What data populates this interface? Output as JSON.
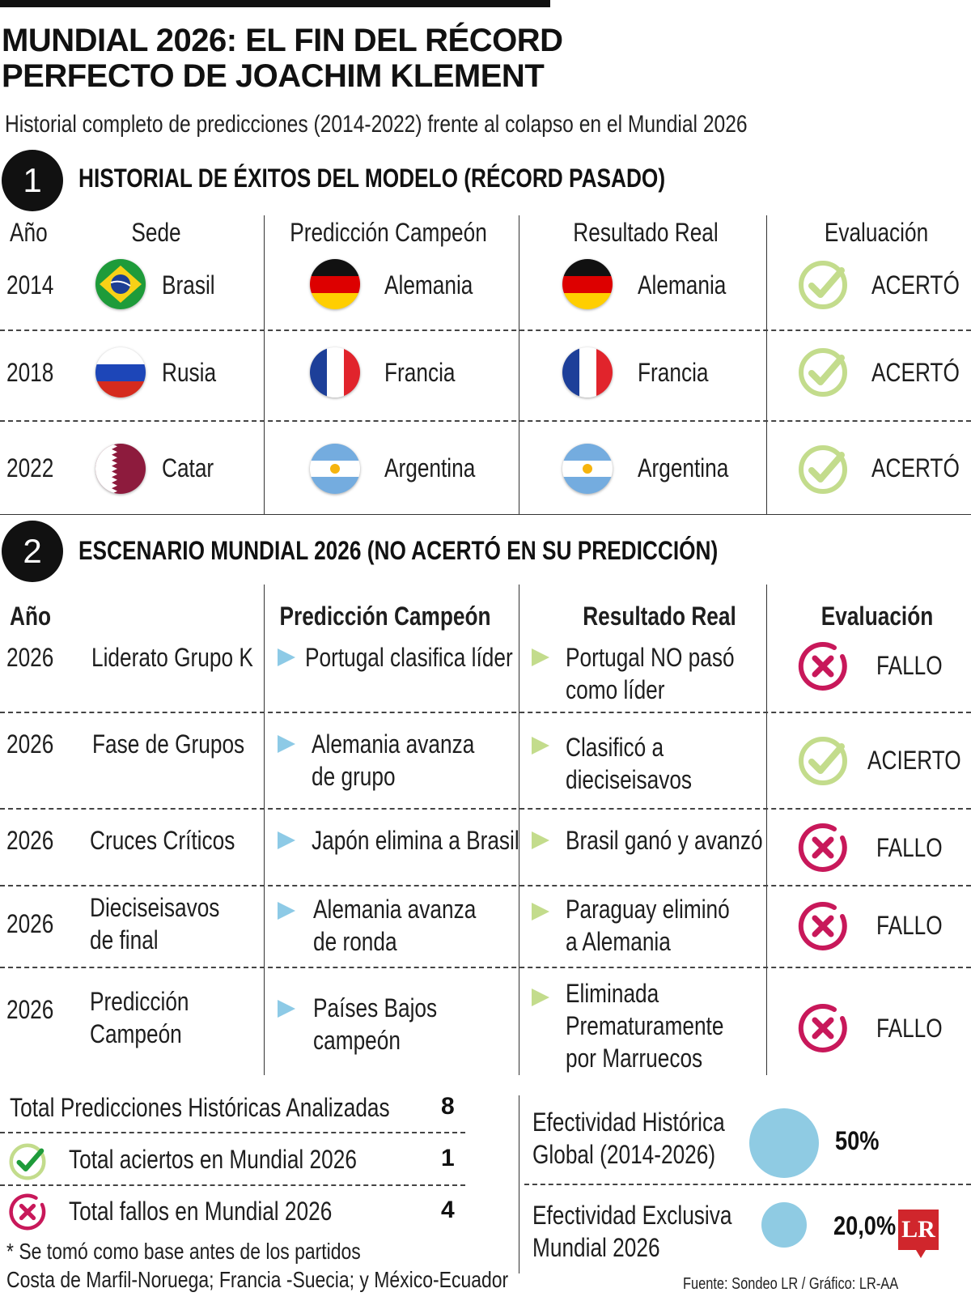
{
  "title_line1": "MUNDIAL 2026: EL FIN DEL RÉCORD",
  "title_line2": "PERFECTO DE JOACHIM KLEMENT",
  "subtitle": "Historial completo de predicciones (2014-2022) frente al colapso en el Mundial 2026",
  "section1": {
    "number": "1",
    "heading": "HISTORIAL DE ÉXITOS DEL MODELO (RÉCORD PASADO)",
    "columns": {
      "year": "Año",
      "host": "Sede",
      "prediction": "Predicción Campeón",
      "result": "Resultado Real",
      "evaluation": "Evaluación"
    },
    "rows": [
      {
        "year": "2014",
        "host": "Brasil",
        "host_flag": "brazil-flag",
        "prediction": "Alemania",
        "prediction_flag": "germany-flag",
        "result": "Alemania",
        "result_flag": "germany-flag",
        "evaluation": "ACERTÓ",
        "eval_icon": "check-icon"
      },
      {
        "year": "2018",
        "host": "Rusia",
        "host_flag": "russia-flag",
        "prediction": "Francia",
        "prediction_flag": "france-flag",
        "result": "Francia",
        "result_flag": "france-flag",
        "evaluation": "ACERTÓ",
        "eval_icon": "check-icon"
      },
      {
        "year": "2022",
        "host": "Catar",
        "host_flag": "qatar-flag",
        "prediction": "Argentina",
        "prediction_flag": "argentina-flag",
        "result": "Argentina",
        "result_flag": "argentina-flag",
        "evaluation": "ACERTÓ",
        "eval_icon": "check-icon"
      }
    ]
  },
  "section2": {
    "number": "2",
    "heading": "ESCENARIO MUNDIAL 2026 (NO ACERTÓ EN SU PREDICCIÓN)",
    "columns": {
      "year": "Año",
      "prediction": "Predicción Campeón",
      "result": "Resultado Real",
      "evaluation": "Evaluación"
    },
    "rows": [
      {
        "year": "2026",
        "phase_l1": "Liderato Grupo K",
        "phase_l2": "",
        "pred_l1": "Portugal clasifica líder",
        "pred_l2": "",
        "res_l1": "Portugal NO pasó",
        "res_l2": "como líder",
        "res_l3": "",
        "evaluation": "FALLO",
        "eval_icon": "cross-icon"
      },
      {
        "year": "2026",
        "phase_l1": "Fase de Grupos",
        "phase_l2": "",
        "pred_l1": "Alemania avanza",
        "pred_l2": "de grupo",
        "res_l1": "Clasificó a",
        "res_l2": "dieciseisavos",
        "res_l3": "",
        "evaluation": "ACIERTO",
        "eval_icon": "check-icon"
      },
      {
        "year": "2026",
        "phase_l1": "Cruces Críticos",
        "phase_l2": "",
        "pred_l1": "Japón elimina a Brasil",
        "pred_l2": "",
        "res_l1": "Brasil ganó y avanzó",
        "res_l2": "",
        "res_l3": "",
        "evaluation": "FALLO",
        "eval_icon": "cross-icon"
      },
      {
        "year": "2026",
        "phase_l1": "Dieciseisavos",
        "phase_l2": "de final",
        "pred_l1": "Alemania avanza",
        "pred_l2": "de ronda",
        "res_l1": "Paraguay eliminó",
        "res_l2": "a Alemania",
        "res_l3": "",
        "evaluation": "FALLO",
        "eval_icon": "cross-icon"
      },
      {
        "year": "2026",
        "phase_l1": "Predicción",
        "phase_l2": "Campeón",
        "pred_l1": "Países Bajos",
        "pred_l2": "campeón",
        "res_l1": "Eliminada",
        "res_l2": "Prematuramente",
        "res_l3": "por Marruecos",
        "evaluation": "FALLO",
        "eval_icon": "cross-icon"
      }
    ]
  },
  "summary": {
    "total_label": "Total Predicciones Históricas Analizadas",
    "total_value": "8",
    "hits_label": "Total aciertos en Mundial 2026",
    "hits_value": "1",
    "fails_label": "Total fallos en Mundial 2026",
    "fails_value": "4",
    "footnote_l1": "* Se tomó como base antes de los partidos",
    "footnote_l2": "Costa de Marfil-Noruega; Francia -Suecia; y México-Ecuador"
  },
  "effectiveness": {
    "global_l1": "Efectividad Histórica",
    "global_l2": "Global (2014-2026)",
    "global_value": "50%",
    "global_fraction": 0.5,
    "exclusive_l1": "Efectividad Exclusiva",
    "exclusive_l2": "Mundial 2026",
    "exclusive_value": "20,0%",
    "exclusive_fraction": 0.2,
    "bubble_color": "#8fcbe3"
  },
  "source": "Fuente: Sondeo LR / Gráfico: LR-AA",
  "logo": "LR",
  "colors": {
    "check": "#c3dc8c",
    "cross": "#c8185a",
    "triangle_blue": "#8dcae6",
    "triangle_green": "#c3dc8c"
  }
}
